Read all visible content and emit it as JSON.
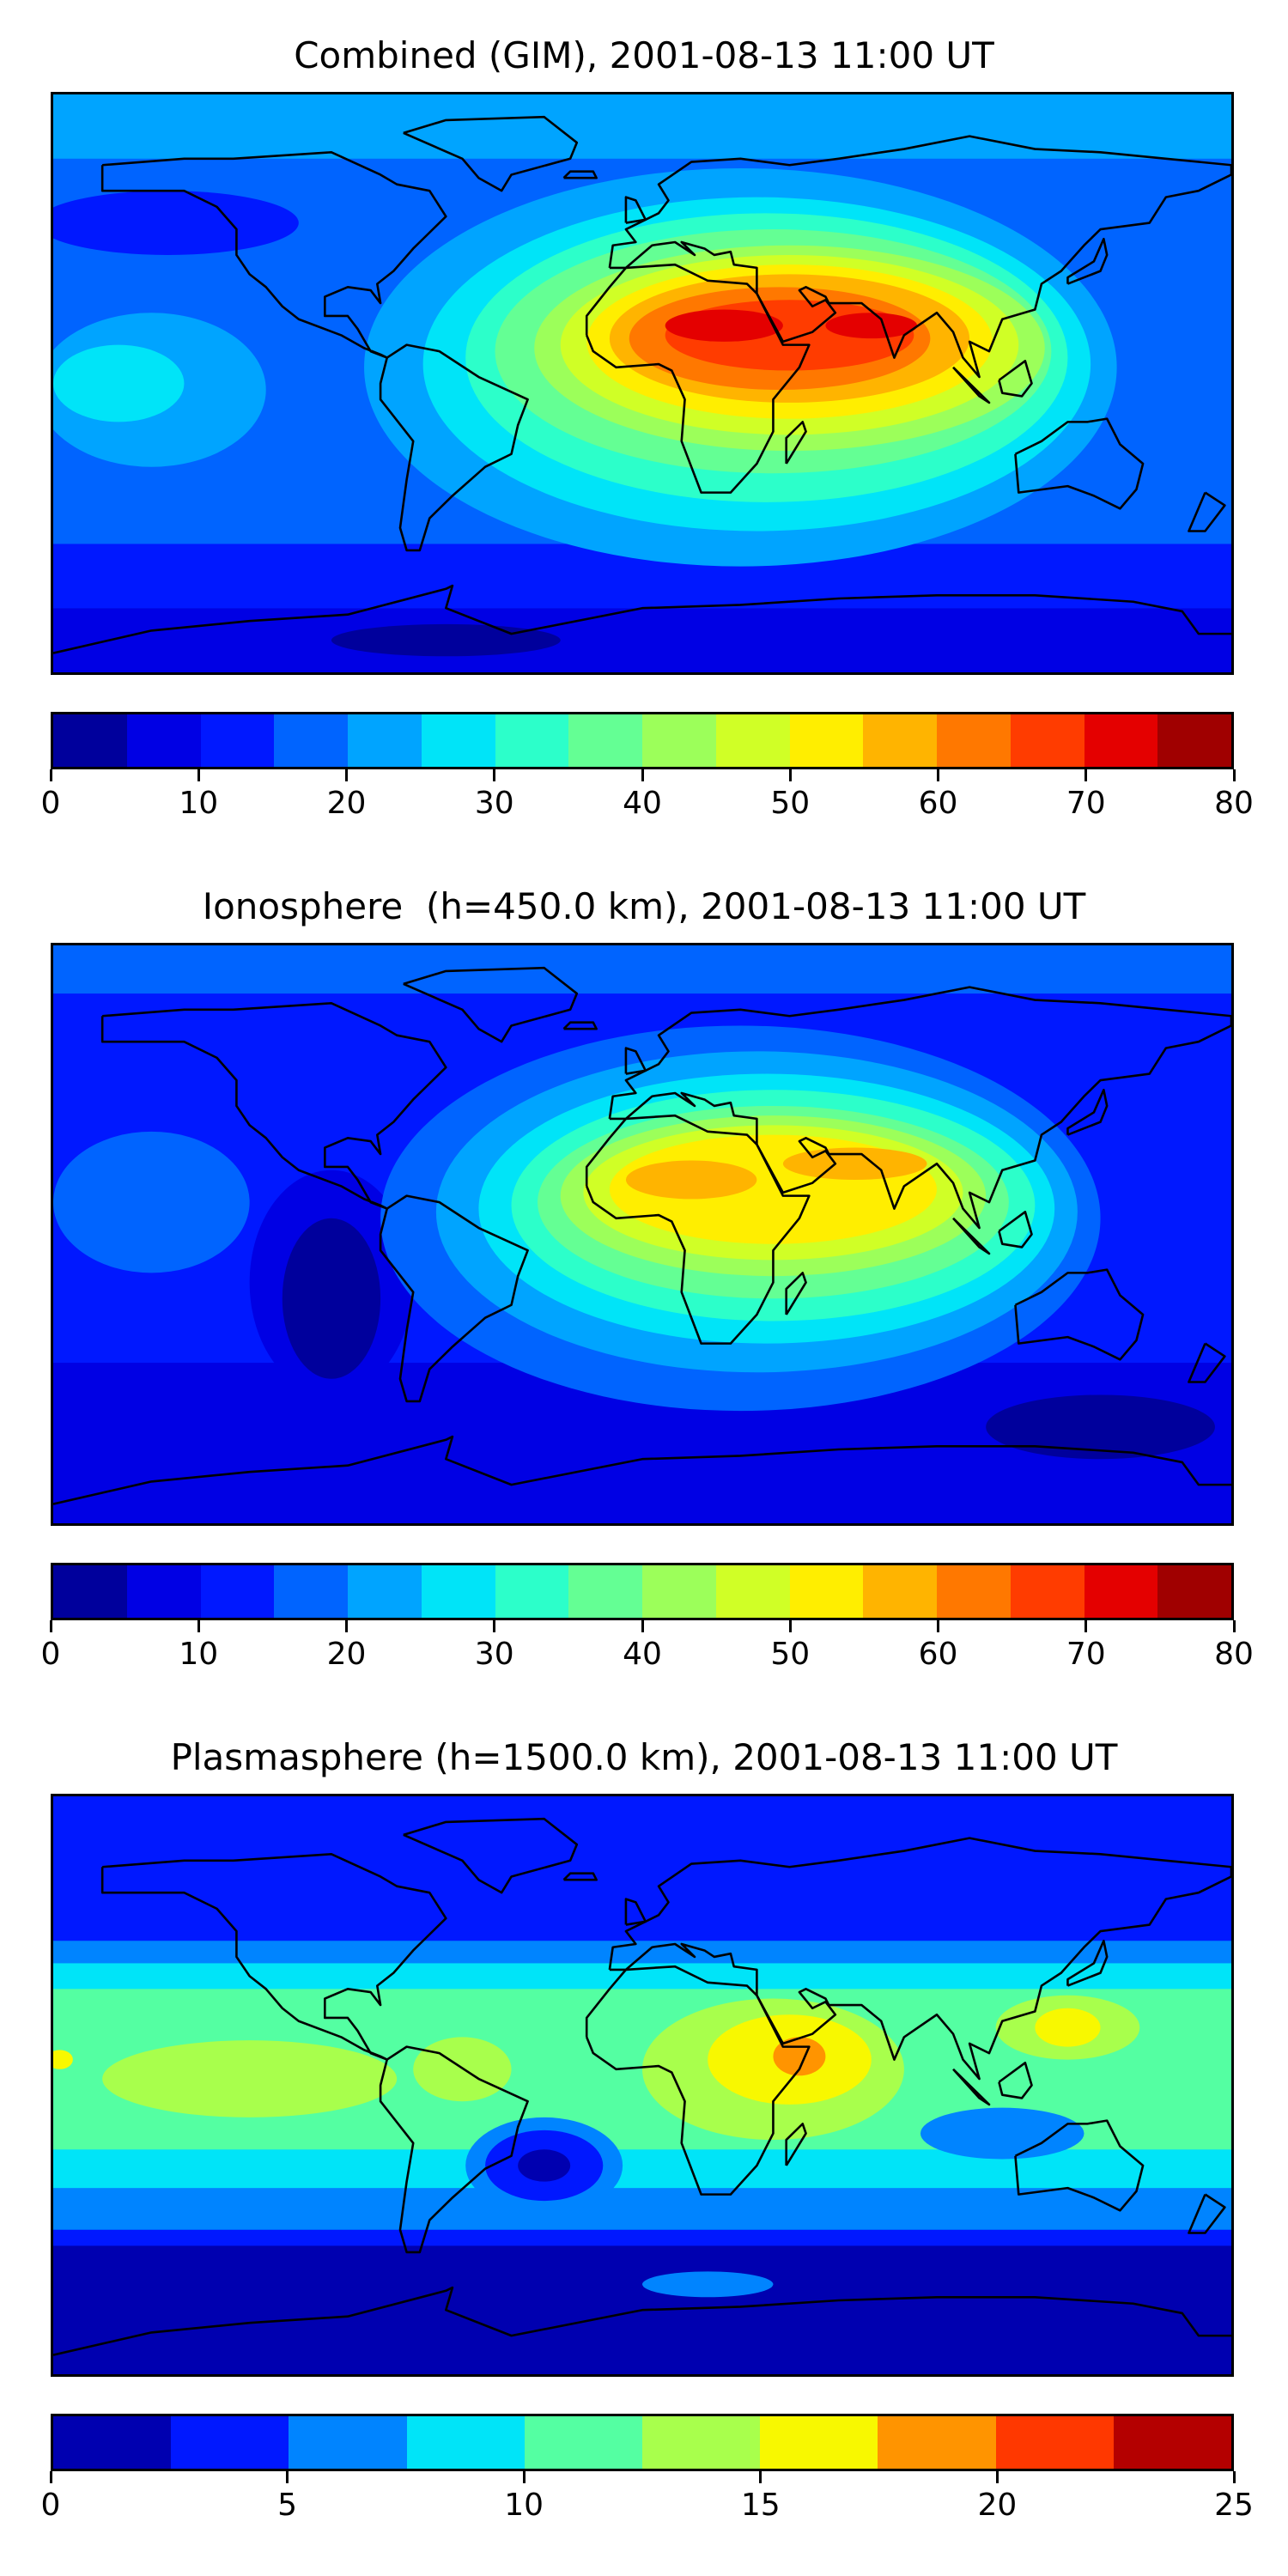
{
  "chart_data": [
    {
      "type": "heatmap",
      "subtype": "filled-contour world map",
      "title": "Combined (GIM), 2001-08-13 11:00 UT",
      "xlim": [
        -180,
        180
      ],
      "ylim": [
        -90,
        90
      ],
      "colorbar": {
        "levels": [
          0,
          5,
          10,
          15,
          20,
          25,
          30,
          35,
          40,
          45,
          50,
          55,
          60,
          65,
          70,
          75,
          80
        ],
        "ticks": [
          "0",
          "10",
          "20",
          "30",
          "40",
          "50",
          "60",
          "70",
          "80"
        ],
        "tick_values": [
          0,
          10,
          20,
          30,
          40,
          50,
          60,
          70,
          80
        ],
        "colors": [
          "#00009c",
          "#0000e4",
          "#0018ff",
          "#0064ff",
          "#00a4ff",
          "#00e4f8",
          "#2cffca",
          "#64ff94",
          "#9cff5a",
          "#d0ff26",
          "#ffee00",
          "#ffb400",
          "#ff7800",
          "#ff3c00",
          "#e40000",
          "#a00000"
        ]
      },
      "background_level": 3,
      "bands": [
        {
          "lat": [
            90,
            70
          ],
          "level": 4
        },
        {
          "lat": [
            -50,
            -70
          ],
          "level": 2
        },
        {
          "lat": [
            -70,
            -90
          ],
          "level": 1
        }
      ],
      "regions": [
        {
          "lon": -145,
          "lat": 50,
          "rx": 40,
          "ry": 10,
          "level": 2
        },
        {
          "lon": -150,
          "lat": -2,
          "rx": 35,
          "ry": 24,
          "level": 4
        },
        {
          "lon": -160,
          "lat": 0,
          "rx": 20,
          "ry": 12,
          "level": 5
        },
        {
          "lon": -60,
          "lat": -80,
          "rx": 35,
          "ry": 5,
          "level": 0
        },
        {
          "lon": 30,
          "lat": 5,
          "rx": 115,
          "ry": 62,
          "level": 4
        },
        {
          "lon": 35,
          "lat": 6,
          "rx": 102,
          "ry": 52,
          "level": 5
        },
        {
          "lon": 38,
          "lat": 8,
          "rx": 92,
          "ry": 45,
          "level": 6
        },
        {
          "lon": 40,
          "lat": 10,
          "rx": 85,
          "ry": 38,
          "level": 7
        },
        {
          "lon": 45,
          "lat": 11,
          "rx": 78,
          "ry": 32,
          "level": 8
        },
        {
          "lon": 45,
          "lat": 12,
          "rx": 70,
          "ry": 28,
          "level": 9
        },
        {
          "lon": 45,
          "lat": 13,
          "rx": 62,
          "ry": 24,
          "level": 10
        },
        {
          "lon": 45,
          "lat": 14,
          "rx": 55,
          "ry": 20,
          "level": 11
        },
        {
          "lon": 42,
          "lat": 14,
          "rx": 46,
          "ry": 16,
          "level": 12
        },
        {
          "lon": 45,
          "lat": 15,
          "rx": 38,
          "ry": 11,
          "level": 13
        },
        {
          "lon": 25,
          "lat": 18,
          "rx": 18,
          "ry": 5,
          "level": 14
        },
        {
          "lon": 70,
          "lat": 18,
          "rx": 14,
          "ry": 4,
          "level": 14
        }
      ]
    },
    {
      "type": "heatmap",
      "subtype": "filled-contour world map",
      "title": "Ionosphere  (h=450.0 km), 2001-08-13 11:00 UT",
      "xlim": [
        -180,
        180
      ],
      "ylim": [
        -90,
        90
      ],
      "colorbar": {
        "levels": [
          0,
          5,
          10,
          15,
          20,
          25,
          30,
          35,
          40,
          45,
          50,
          55,
          60,
          65,
          70,
          75,
          80
        ],
        "ticks": [
          "0",
          "10",
          "20",
          "30",
          "40",
          "50",
          "60",
          "70",
          "80"
        ],
        "tick_values": [
          0,
          10,
          20,
          30,
          40,
          50,
          60,
          70,
          80
        ],
        "colors": [
          "#00009c",
          "#0000e4",
          "#0018ff",
          "#0064ff",
          "#00a4ff",
          "#00e4f8",
          "#2cffca",
          "#64ff94",
          "#9cff5a",
          "#d0ff26",
          "#ffee00",
          "#ffb400",
          "#ff7800",
          "#ff3c00",
          "#e40000",
          "#a00000"
        ]
      },
      "background_level": 2,
      "bands": [
        {
          "lat": [
            90,
            75
          ],
          "level": 3
        },
        {
          "lat": [
            -40,
            -65
          ],
          "level": 1
        },
        {
          "lat": [
            -65,
            -90
          ],
          "level": 1
        }
      ],
      "regions": [
        {
          "lon": -150,
          "lat": 10,
          "rx": 30,
          "ry": 22,
          "level": 3
        },
        {
          "lon": -95,
          "lat": -15,
          "rx": 25,
          "ry": 35,
          "level": 1
        },
        {
          "lon": -95,
          "lat": -20,
          "rx": 15,
          "ry": 25,
          "level": 0
        },
        {
          "lon": 140,
          "lat": -60,
          "rx": 35,
          "ry": 10,
          "level": 0
        },
        {
          "lon": 30,
          "lat": 5,
          "rx": 110,
          "ry": 60,
          "level": 3
        },
        {
          "lon": 35,
          "lat": 7,
          "rx": 98,
          "ry": 50,
          "level": 4
        },
        {
          "lon": 38,
          "lat": 8,
          "rx": 88,
          "ry": 42,
          "level": 5
        },
        {
          "lon": 40,
          "lat": 9,
          "rx": 80,
          "ry": 36,
          "level": 6
        },
        {
          "lon": 40,
          "lat": 10,
          "rx": 72,
          "ry": 30,
          "level": 7
        },
        {
          "lon": 40,
          "lat": 12,
          "rx": 65,
          "ry": 25,
          "level": 8
        },
        {
          "lon": 40,
          "lat": 13,
          "rx": 58,
          "ry": 21,
          "level": 9
        },
        {
          "lon": 40,
          "lat": 14,
          "rx": 50,
          "ry": 17,
          "level": 10
        },
        {
          "lon": 15,
          "lat": 17,
          "rx": 20,
          "ry": 6,
          "level": 11
        },
        {
          "lon": 65,
          "lat": 22,
          "rx": 22,
          "ry": 5,
          "level": 11
        }
      ]
    },
    {
      "type": "heatmap",
      "subtype": "filled-contour world map",
      "title": "Plasmasphere (h=1500.0 km), 2001-08-13 11:00 UT",
      "xlim": [
        -180,
        180
      ],
      "ylim": [
        -90,
        90
      ],
      "colorbar": {
        "levels": [
          0,
          2.5,
          5,
          7.5,
          10,
          12.5,
          15,
          17.5,
          20,
          22.5,
          25
        ],
        "ticks": [
          "0",
          "5",
          "10",
          "15",
          "20",
          "25"
        ],
        "tick_values": [
          0,
          5,
          10,
          15,
          20,
          25
        ],
        "colors": [
          "#0000b0",
          "#0018ff",
          "#0084ff",
          "#00e4f8",
          "#54ffa2",
          "#a8ff4c",
          "#f8f800",
          "#ff9400",
          "#ff3800",
          "#b40000"
        ]
      },
      "background_level": 1,
      "bands": [
        {
          "lat": [
            45,
            -45
          ],
          "level": 2
        },
        {
          "lat": [
            38,
            -32
          ],
          "level": 3
        },
        {
          "lat": [
            30,
            -20
          ],
          "level": 4
        },
        {
          "lat": [
            -50,
            -90
          ],
          "level": 0
        }
      ],
      "regions": [
        {
          "lon": -120,
          "lat": 2,
          "rx": 45,
          "ry": 12,
          "level": 5
        },
        {
          "lon": -55,
          "lat": 5,
          "rx": 15,
          "ry": 10,
          "level": 5
        },
        {
          "lon": -178,
          "lat": 8,
          "rx": 4,
          "ry": 3,
          "level": 6
        },
        {
          "lon": -30,
          "lat": -25,
          "rx": 24,
          "ry": 15,
          "level": 2
        },
        {
          "lon": -30,
          "lat": -25,
          "rx": 18,
          "ry": 11,
          "level": 1
        },
        {
          "lon": -30,
          "lat": -25,
          "rx": 8,
          "ry": 5,
          "level": 0
        },
        {
          "lon": 110,
          "lat": -15,
          "rx": 25,
          "ry": 8,
          "level": 2
        },
        {
          "lon": 40,
          "lat": 5,
          "rx": 40,
          "ry": 22,
          "level": 5
        },
        {
          "lon": 45,
          "lat": 8,
          "rx": 25,
          "ry": 14,
          "level": 6
        },
        {
          "lon": 48,
          "lat": 9,
          "rx": 8,
          "ry": 6,
          "level": 7
        },
        {
          "lon": 130,
          "lat": 18,
          "rx": 22,
          "ry": 10,
          "level": 5
        },
        {
          "lon": 130,
          "lat": 18,
          "rx": 10,
          "ry": 6,
          "level": 6
        },
        {
          "lon": 20,
          "lat": -62,
          "rx": 20,
          "ry": 4,
          "level": 2
        }
      ]
    }
  ]
}
